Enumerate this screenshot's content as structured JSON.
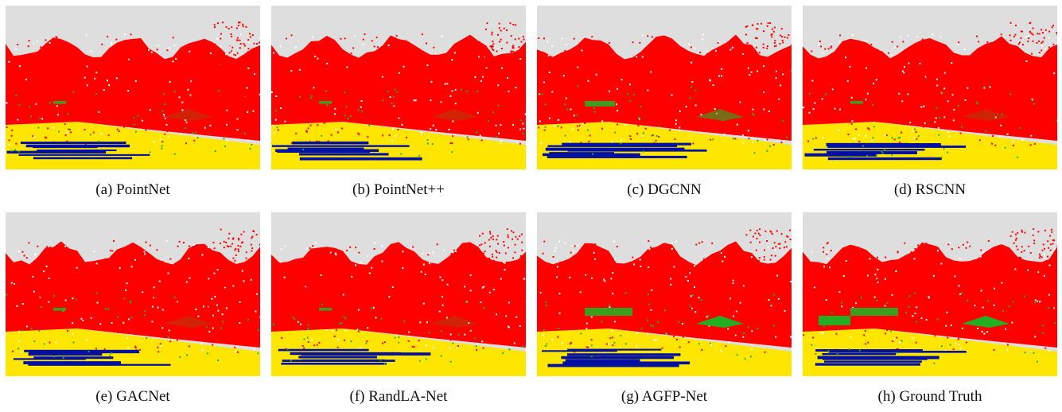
{
  "panels": [
    {
      "caption": "(a) PointNet"
    },
    {
      "caption": "(b) PointNet++"
    },
    {
      "caption": "(c) DGCNN"
    },
    {
      "caption": "(d) RSCNN"
    },
    {
      "caption": "(e) GACNet"
    },
    {
      "caption": "(f) RandLA-Net"
    },
    {
      "caption": "(g) AGFP-Net"
    },
    {
      "caption": "(h) Ground Truth"
    }
  ]
}
